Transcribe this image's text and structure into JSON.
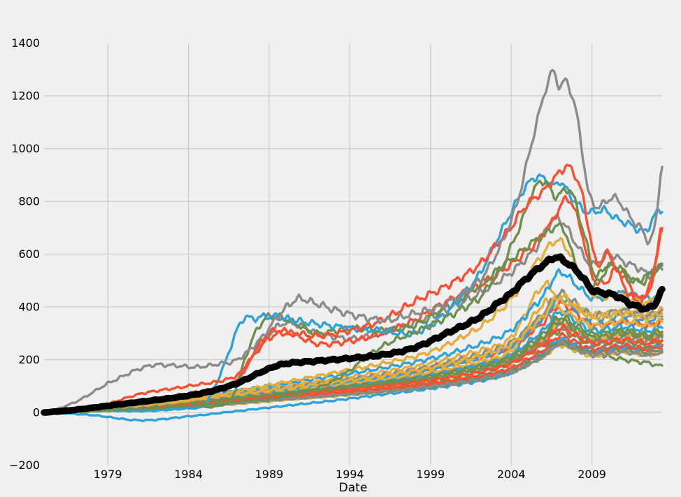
{
  "chart_data": {
    "type": "line",
    "title": "",
    "xlabel": "Date",
    "ylabel": "",
    "x_tick_years": [
      1979,
      1984,
      1989,
      1994,
      1999,
      2004,
      2009
    ],
    "y_ticks": [
      -200,
      0,
      200,
      400,
      600,
      800,
      1000,
      1200,
      1400
    ],
    "h_grid_values": [
      0,
      200,
      400,
      600,
      800,
      1000,
      1200
    ],
    "xlim": [
      1975.05,
      2013.35
    ],
    "ylim": [
      -201,
      1397
    ],
    "grid": true,
    "legend": "none",
    "colors": {
      "background": "#f0f0f0",
      "grid": "#cccccc",
      "text": "#000000",
      "thick_line": "#000000",
      "palette": {
        "blue": "#30a2da",
        "red": "#fc4f30",
        "yellow": "#e5ae38",
        "green": "#6d904f",
        "gray": "#8b8b8b"
      }
    },
    "x_default": [
      1975,
      1978,
      1981,
      1984,
      1987,
      1990,
      1993,
      1996,
      1999,
      2002,
      2004,
      2006,
      2007,
      2008,
      2009,
      2011,
      2012.5,
      2013.3
    ],
    "series": [
      {
        "color": "green",
        "v": [
          0,
          10,
          18,
          30,
          45,
          60,
          75,
          90,
          110,
          130,
          160,
          220,
          260,
          245,
          225,
          200,
          188,
          175
        ]
      },
      {
        "color": "blue",
        "v": [
          0,
          6,
          14,
          24,
          38,
          55,
          70,
          85,
          105,
          135,
          165,
          230,
          280,
          260,
          240,
          250,
          240,
          255
        ]
      },
      {
        "color": "red",
        "v": [
          0,
          10,
          22,
          36,
          52,
          70,
          88,
          105,
          128,
          160,
          195,
          270,
          330,
          300,
          272,
          285,
          270,
          290
        ]
      },
      {
        "color": "yellow",
        "v": [
          0,
          4,
          10,
          20,
          32,
          48,
          62,
          78,
          96,
          122,
          150,
          210,
          255,
          235,
          215,
          230,
          220,
          232
        ]
      },
      {
        "color": "green",
        "v": [
          0,
          8,
          18,
          30,
          46,
          64,
          80,
          98,
          120,
          150,
          185,
          255,
          310,
          285,
          258,
          268,
          255,
          270
        ]
      },
      {
        "color": "gray",
        "v": [
          0,
          12,
          26,
          42,
          60,
          80,
          100,
          120,
          145,
          180,
          220,
          360,
          340,
          310,
          280,
          300,
          285,
          295
        ]
      },
      {
        "color": "blue",
        "v": [
          0,
          -10,
          -30,
          -15,
          5,
          25,
          45,
          68,
          90,
          118,
          150,
          215,
          270,
          250,
          230,
          245,
          235,
          250
        ]
      },
      {
        "color": "red",
        "v": [
          0,
          14,
          30,
          48,
          68,
          90,
          112,
          135,
          165,
          205,
          250,
          340,
          410,
          375,
          335,
          345,
          330,
          345
        ]
      },
      {
        "color": "yellow",
        "v": [
          0,
          8,
          18,
          30,
          46,
          64,
          82,
          100,
          124,
          158,
          195,
          275,
          340,
          310,
          280,
          295,
          285,
          300
        ]
      },
      {
        "color": "green",
        "v": [
          0,
          5,
          12,
          22,
          35,
          50,
          64,
          80,
          98,
          125,
          155,
          215,
          265,
          245,
          225,
          235,
          225,
          235
        ]
      },
      {
        "color": "gray",
        "v": [
          0,
          9,
          20,
          33,
          49,
          67,
          85,
          104,
          127,
          160,
          196,
          272,
          330,
          302,
          272,
          282,
          268,
          280
        ]
      },
      {
        "color": "blue",
        "v": [
          0,
          11,
          24,
          39,
          57,
          77,
          97,
          118,
          143,
          180,
          220,
          310,
          380,
          348,
          312,
          325,
          310,
          325
        ]
      },
      {
        "color": "red",
        "v": [
          0,
          7,
          16,
          27,
          41,
          57,
          72,
          88,
          108,
          136,
          168,
          235,
          290,
          266,
          240,
          252,
          240,
          252
        ]
      },
      {
        "color": "yellow",
        "v": [
          0,
          12,
          26,
          43,
          62,
          83,
          104,
          126,
          153,
          192,
          235,
          410,
          390,
          360,
          330,
          345,
          330,
          345
        ]
      },
      {
        "color": "green",
        "v": [
          0,
          10,
          22,
          36,
          52,
          70,
          88,
          107,
          130,
          164,
          200,
          280,
          345,
          315,
          285,
          298,
          285,
          298
        ]
      },
      {
        "color": "gray",
        "v": [
          0,
          6,
          13,
          23,
          36,
          51,
          65,
          80,
          98,
          124,
          152,
          212,
          260,
          240,
          218,
          228,
          218,
          228
        ]
      },
      {
        "color": "blue",
        "v": [
          0,
          13,
          28,
          46,
          66,
          89,
          112,
          136,
          165,
          207,
          253,
          355,
          430,
          393,
          353,
          368,
          350,
          368
        ]
      },
      {
        "color": "red",
        "v": [
          0,
          9,
          19,
          32,
          47,
          64,
          81,
          99,
          121,
          152,
          186,
          260,
          320,
          293,
          264,
          276,
          263,
          276
        ]
      },
      {
        "color": "yellow",
        "v": [
          0,
          15,
          32,
          52,
          75,
          100,
          126,
          153,
          186,
          233,
          285,
          480,
          430,
          400,
          370,
          385,
          367,
          385
        ]
      },
      {
        "color": "green",
        "v": [
          0,
          11,
          23,
          38,
          55,
          74,
          93,
          113,
          138,
          173,
          211,
          296,
          360,
          330,
          297,
          310,
          295,
          310
        ]
      },
      {
        "color": "gray",
        "v": [
          0,
          14,
          30,
          49,
          70,
          94,
          118,
          143,
          174,
          218,
          266,
          372,
          450,
          412,
          370,
          385,
          367,
          385
        ]
      },
      {
        "color": "blue",
        "v": [
          0,
          16,
          35,
          57,
          82,
          110,
          138,
          168,
          204,
          256,
          313,
          440,
          530,
          485,
          435,
          452,
          430,
          452
        ]
      },
      {
        "color": "yellow",
        "v": [
          0,
          13,
          29,
          47,
          68,
          91,
          114,
          139,
          169,
          212,
          259,
          363,
          440,
          403,
          362,
          377,
          359,
          377
        ]
      },
      {
        "color": "yellow",
        "v": [
          0,
          10,
          25,
          45,
          80,
          115,
          150,
          185,
          230,
          320,
          430,
          600,
          650,
          560,
          450,
          440,
          415,
          460
        ]
      },
      {
        "color": "gray",
        "x": [
          1975,
          1978,
          1981,
          1984,
          1987,
          1988.6,
          1990,
          1992,
          1994,
          1996,
          1998,
          2000,
          2002,
          2004,
          2005.5,
          2006.6,
          2007.2,
          2008,
          2009,
          2010,
          2011,
          2012,
          2012.6,
          2013.3
        ],
        "v": [
          0,
          10,
          30,
          60,
          120,
          265,
          340,
          300,
          280,
          300,
          340,
          390,
          450,
          530,
          620,
          728,
          720,
          640,
          560,
          600,
          570,
          545,
          520,
          555
        ]
      },
      {
        "color": "red",
        "x": [
          1975,
          1978,
          1981,
          1984,
          1987,
          1988.3,
          1989.3,
          1990.5,
          1992,
          1994,
          1996,
          1998,
          2000,
          2002,
          2004,
          2005.5,
          2006.5,
          2007.5,
          2008.3,
          2009,
          2009.8,
          2010.5,
          2011.5,
          2012,
          2012.8,
          2013.3
        ],
        "v": [
          0,
          10,
          40,
          70,
          120,
          250,
          310,
          295,
          260,
          270,
          300,
          350,
          420,
          480,
          560,
          640,
          720,
          810,
          700,
          520,
          490,
          540,
          470,
          430,
          520,
          690
        ]
      },
      {
        "color": "green",
        "x": [
          1975,
          1978,
          1981,
          1984,
          1986.6,
          1987.8,
          1988.6,
          1989.3,
          1990.5,
          1992,
          1994,
          1996,
          1998,
          2000,
          2002,
          2004,
          2006,
          2007.2,
          2008,
          2009,
          2010.3,
          2011.5,
          2012.5,
          2013.3
        ],
        "v": [
          0,
          5,
          10,
          20,
          45,
          250,
          345,
          365,
          340,
          300,
          320,
          310,
          330,
          400,
          480,
          580,
          670,
          700,
          560,
          480,
          560,
          500,
          520,
          545
        ]
      },
      {
        "color": "blue",
        "x": [
          1975,
          1978,
          1981,
          1984,
          1985,
          1986,
          1987.3,
          1988,
          1989,
          1990.5,
          1992,
          1994,
          1996,
          1998,
          2000,
          2002,
          2003.5,
          2005,
          2005.8,
          2006.7,
          2007,
          2007.8,
          2008.7,
          2009.8,
          2010.5,
          2011.3,
          2012.3,
          2013,
          2013.3
        ],
        "v": [
          0,
          8,
          5,
          15,
          30,
          150,
          345,
          355,
          365,
          350,
          335,
          320,
          310,
          300,
          380,
          520,
          700,
          860,
          892,
          858,
          876,
          810,
          760,
          766,
          735,
          713,
          687,
          755,
          770
        ]
      },
      {
        "color": "green",
        "x": [
          1975,
          1978,
          1981,
          1984,
          1987,
          1990,
          1993,
          1996,
          1999,
          2002,
          2003.5,
          2004.5,
          2005.5,
          2006.1,
          2006.7,
          2007.7,
          2008.6,
          2009.2,
          2010,
          2011,
          2012,
          2012.7,
          2013.3
        ],
        "v": [
          0,
          6,
          14,
          25,
          40,
          60,
          120,
          250,
          330,
          430,
          560,
          700,
          850,
          874,
          820,
          837,
          660,
          520,
          560,
          530,
          490,
          530,
          560
        ]
      },
      {
        "color": "red",
        "x": [
          1975,
          1978,
          1981,
          1984,
          1987,
          1989,
          1990.5,
          1992,
          1994,
          1996,
          1998,
          2000,
          2002,
          2004,
          2005,
          2006,
          2007.2,
          2007.6,
          2008.3,
          2008.8,
          2009.3,
          2010,
          2011,
          2011.8,
          2012.5,
          2013,
          2013.3
        ],
        "v": [
          0,
          15,
          70,
          100,
          140,
          280,
          300,
          290,
          310,
          350,
          420,
          480,
          560,
          700,
          790,
          840,
          920,
          928,
          850,
          700,
          560,
          600,
          480,
          420,
          450,
          580,
          700
        ]
      },
      {
        "color": "gray",
        "x": [
          1975,
          1977,
          1979,
          1981.5,
          1983,
          1984.5,
          1986,
          1987,
          1988.5,
          1989.8,
          1990.8,
          1991.5,
          1993,
          1994.5,
          1996.3,
          1998,
          1999.5,
          2001,
          2002.3,
          2003.5,
          2004.4,
          2005.2,
          2005.8,
          2006.4,
          2006.6,
          2007,
          2007.4,
          2008,
          2008.4,
          2008.8,
          2009.3,
          2009.8,
          2010.3,
          2010.8,
          2011.5,
          2012,
          2012.6,
          2013,
          2013.3
        ],
        "v": [
          0,
          40,
          110,
          175,
          178,
          172,
          185,
          200,
          280,
          380,
          430,
          420,
          390,
          365,
          350,
          375,
          400,
          450,
          520,
          650,
          800,
          1000,
          1150,
          1270,
          1290,
          1235,
          1255,
          1150,
          990,
          830,
          780,
          795,
          815,
          790,
          730,
          700,
          650,
          740,
          930
        ]
      }
    ],
    "thick_line": {
      "color": "black",
      "x": [
        1975,
        1977,
        1979,
        1981,
        1983,
        1985,
        1987,
        1989,
        1990,
        1992,
        1994,
        1996,
        1998,
        2000,
        2002,
        2004,
        2005,
        2006,
        2006.8,
        2007.5,
        2008,
        2008.5,
        2009,
        2009.5,
        2010,
        2010.5,
        2011,
        2011.5,
        2012,
        2012.4,
        2012.8,
        2013,
        2013.3
      ],
      "v": [
        0,
        10,
        25,
        40,
        55,
        75,
        110,
        165,
        185,
        195,
        205,
        218,
        245,
        300,
        360,
        450,
        510,
        560,
        588,
        565,
        540,
        505,
        465,
        455,
        450,
        442,
        425,
        408,
        398,
        393,
        405,
        420,
        460
      ]
    }
  }
}
